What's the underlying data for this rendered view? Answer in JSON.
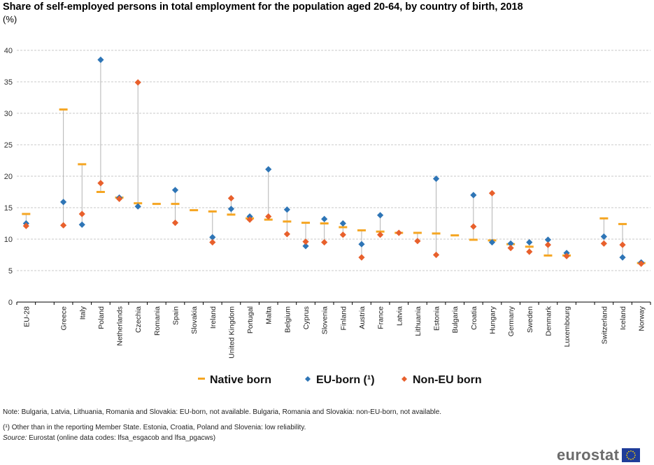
{
  "title": "Share of self-employed persons in total employment for the population aged 20-64, by country of birth, 2018",
  "subtitle": "(%)",
  "colors": {
    "native": "#f5a623",
    "eu": "#2e75b6",
    "noneu": "#e8602c",
    "grid": "#c8c8c8",
    "stem": "#b3b3b3"
  },
  "notes": {
    "note1": "Note: Bulgaria, Latvia, Lithuania, Romania and Slovakia: EU-born, not available. Bulgaria, Romania and Slovakia: non-EU-born, not available.",
    "note2": "(¹) Other than in the reporting Member State. Estonia, Croatia, Poland and Slovenia: low reliability.",
    "source_label": "Source:",
    "source_text": " Eurostat (online data codes: lfsa_esgacob and lfsa_pgacws)"
  },
  "logo": {
    "text": "eurostat",
    "icon": "eu-flag-icon"
  },
  "chart_data": {
    "type": "scatter",
    "ylim": [
      0,
      40
    ],
    "yticks": [
      0,
      5,
      10,
      15,
      20,
      25,
      30,
      35,
      40
    ],
    "grid": true,
    "legend_position": "bottom",
    "categories": [
      "EU-28",
      "",
      "Greece",
      "Italy",
      "Poland",
      "Netherlands",
      "Czechia",
      "Romania",
      "Spain",
      "Slovakia",
      "Ireland",
      "United Kingdom",
      "Portugal",
      "Malta",
      "Belgium",
      "Cyprus",
      "Slovenia",
      "Finland",
      "Austria",
      "France",
      "Latvia",
      "Lithuania",
      "Estonia",
      "Bulgaria",
      "Croatia",
      "Hungary",
      "Germany",
      "Sweden",
      "Denmark",
      "Luxembourg",
      "",
      "Switzerland",
      "Iceland",
      "Norway"
    ],
    "series": [
      {
        "name": "Native born",
        "marker": "dash",
        "values": [
          14.0,
          null,
          30.6,
          21.9,
          17.5,
          16.6,
          15.7,
          15.6,
          15.6,
          14.6,
          14.4,
          13.9,
          13.3,
          13.1,
          12.8,
          12.6,
          12.5,
          11.9,
          11.4,
          11.2,
          11.0,
          11.0,
          10.9,
          10.6,
          9.9,
          9.8,
          9.2,
          8.8,
          7.4,
          7.4,
          null,
          13.3,
          12.4,
          6.2
        ]
      },
      {
        "name": "EU-born (¹)",
        "marker": "diamond",
        "values": [
          12.5,
          null,
          15.9,
          12.3,
          38.5,
          16.6,
          15.2,
          null,
          17.8,
          null,
          10.3,
          14.8,
          13.6,
          21.1,
          14.7,
          8.9,
          13.2,
          12.5,
          9.2,
          13.8,
          null,
          null,
          19.6,
          null,
          17.0,
          9.5,
          9.3,
          9.5,
          9.9,
          7.8,
          null,
          10.4,
          7.1,
          6.3
        ]
      },
      {
        "name": "Non-EU born",
        "marker": "diamond",
        "values": [
          12.1,
          null,
          12.2,
          14.0,
          18.9,
          16.4,
          34.9,
          null,
          12.6,
          null,
          9.5,
          16.5,
          13.1,
          13.6,
          10.8,
          9.6,
          9.5,
          10.7,
          7.1,
          10.7,
          11.0,
          9.7,
          7.5,
          null,
          12.0,
          17.3,
          8.6,
          8.0,
          9.1,
          7.3,
          null,
          9.3,
          9.1,
          6.1
        ]
      }
    ]
  }
}
